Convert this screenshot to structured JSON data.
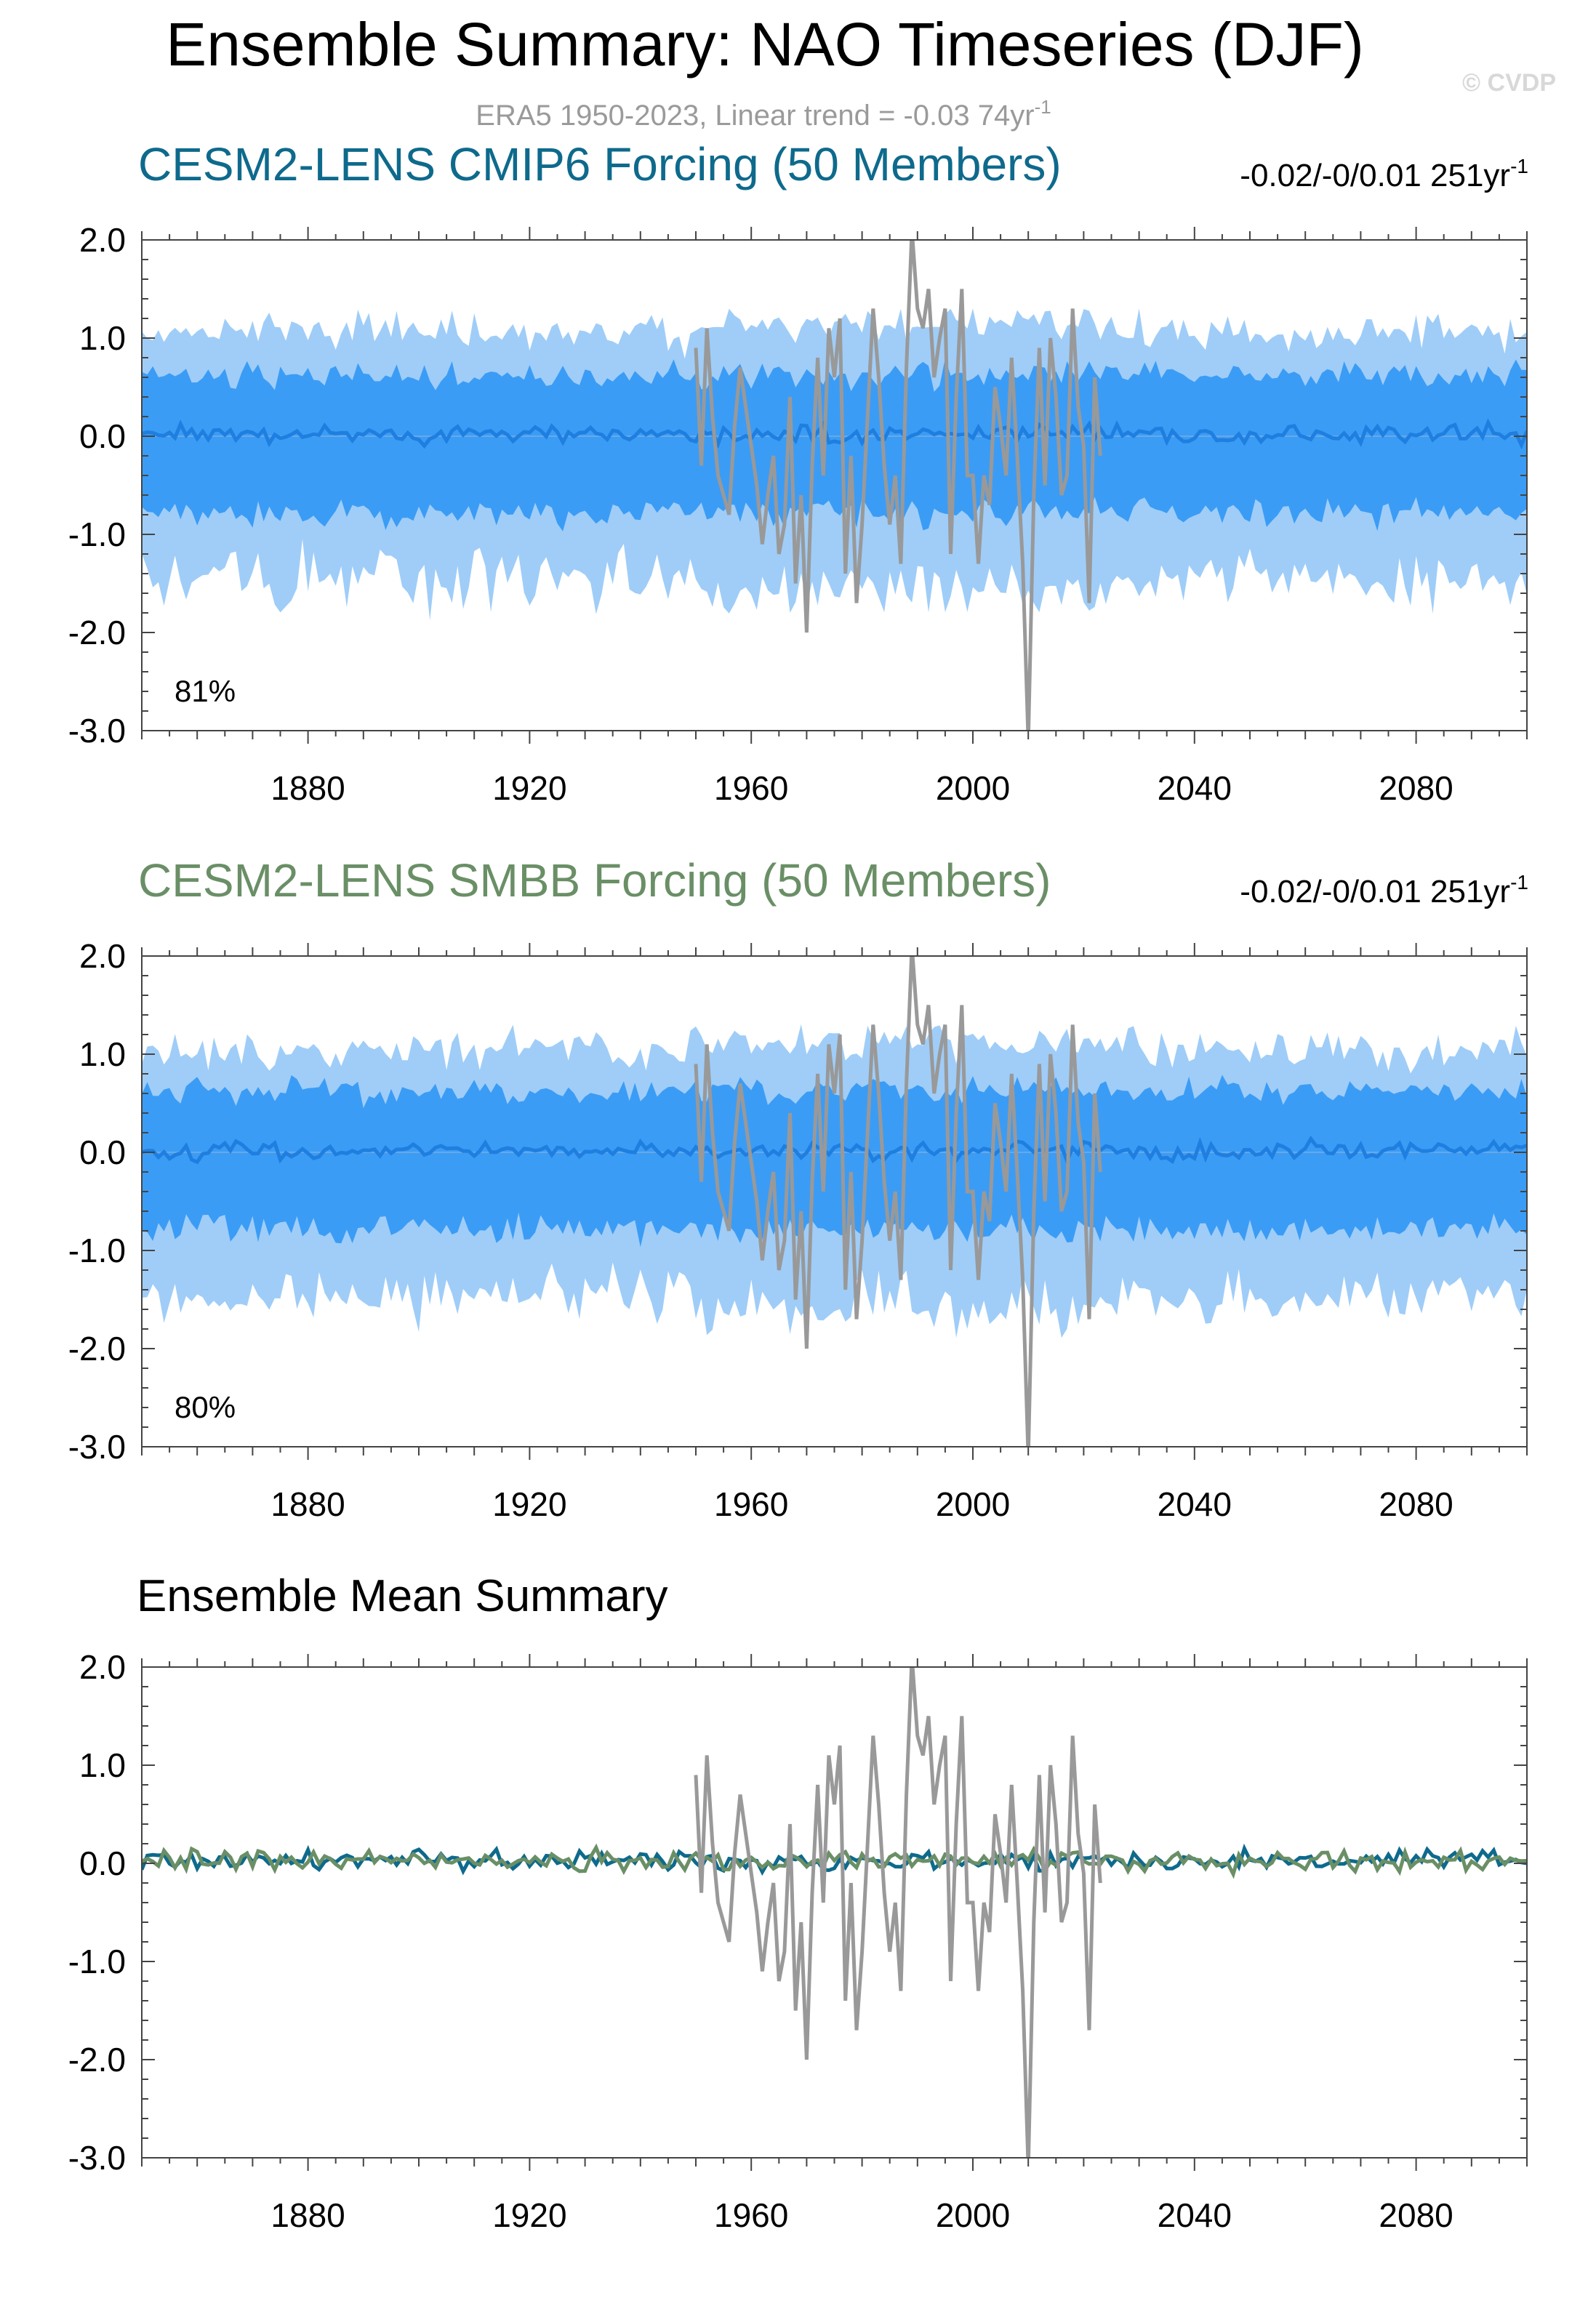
{
  "title": "Ensemble Summary: NAO Timeseries (DJF)",
  "watermark": "© CVDP",
  "subtitle": "ERA5 1950-2023, Linear trend = -0.03 74yr",
  "subtitle_exp": "-1",
  "colors": {
    "obs": "#999999",
    "outer_band": "#9fcdf8",
    "inner_band": "#3b9cf5",
    "ens_mean_line": "#1e7fe0",
    "cmip6": "#0e6a8c",
    "smbb": "#6a8f66",
    "frame": "#444444",
    "title": "#000000",
    "subtitle": "#9a9a9a",
    "watermark": "#d8d8d8"
  },
  "chart_data": [
    {
      "type": "area",
      "title": "CESM2-LENS CMIP6 Forcing (50 Members)",
      "trend_label": "-0.02/-0/0.01 251yr",
      "trend_exp": "-1",
      "annotation": "81%",
      "xlim": [
        1850,
        2100
      ],
      "ylim": [
        -3.0,
        2.0
      ],
      "yticks": [
        "2.0",
        "1.0",
        "0.0",
        "-1.0",
        "-2.0",
        "-3.0"
      ],
      "xticks": [
        "1880",
        "1920",
        "1960",
        "2000",
        "2040",
        "2080"
      ],
      "series": [
        {
          "kind": "band_outer",
          "description": "ensemble spread approx -1.6 to 1.1"
        },
        {
          "kind": "band_inner",
          "description": "ensemble spread approx -0.9 to 0.8"
        },
        {
          "kind": "ensemble_mean",
          "description": "near 0.0"
        },
        {
          "kind": "observations",
          "name": "ERA5"
        }
      ]
    },
    {
      "type": "area",
      "title": "CESM2-LENS SMBB Forcing (50 Members)",
      "trend_label": "-0.02/-0/0.01 251yr",
      "trend_exp": "-1",
      "annotation": "80%",
      "xlim": [
        1850,
        2100
      ],
      "ylim": [
        -3.0,
        2.0
      ],
      "yticks": [
        "2.0",
        "1.0",
        "0.0",
        "-1.0",
        "-2.0",
        "-3.0"
      ],
      "xticks": [
        "1880",
        "1920",
        "1960",
        "2000",
        "2040",
        "2080"
      ],
      "series": [
        {
          "kind": "band_outer"
        },
        {
          "kind": "band_inner"
        },
        {
          "kind": "ensemble_mean"
        },
        {
          "kind": "observations",
          "name": "ERA5"
        }
      ]
    },
    {
      "type": "line",
      "title": "Ensemble Mean Summary",
      "xlim": [
        1850,
        2100
      ],
      "ylim": [
        -3.0,
        2.0
      ],
      "yticks": [
        "2.0",
        "1.0",
        "0.0",
        "-1.0",
        "-2.0",
        "-3.0"
      ],
      "xticks": [
        "1880",
        "1920",
        "1960",
        "2000",
        "2040",
        "2080"
      ],
      "series": [
        {
          "kind": "observations",
          "color_key": "obs"
        },
        {
          "kind": "cmip6_mean",
          "color_key": "cmip6"
        },
        {
          "kind": "smbb_mean",
          "color_key": "smbb"
        }
      ]
    }
  ],
  "obs_series": {
    "years": [
      1950,
      1951,
      1952,
      1953,
      1954,
      1955,
      1956,
      1957,
      1958,
      1959,
      1960,
      1961,
      1962,
      1963,
      1964,
      1965,
      1966,
      1967,
      1968,
      1969,
      1970,
      1971,
      1972,
      1973,
      1974,
      1975,
      1976,
      1977,
      1978,
      1979,
      1980,
      1981,
      1982,
      1983,
      1984,
      1985,
      1986,
      1987,
      1988,
      1989,
      1990,
      1991,
      1992,
      1993,
      1994,
      1995,
      1996,
      1997,
      1998,
      1999,
      2000,
      2001,
      2002,
      2003,
      2004,
      2005,
      2006,
      2007,
      2008,
      2009,
      2010,
      2011,
      2012,
      2013,
      2014,
      2015,
      2016,
      2017,
      2018,
      2019,
      2020,
      2021,
      2022,
      2023
    ],
    "values": [
      0.9,
      -0.3,
      1.1,
      0.2,
      -0.4,
      -0.6,
      -0.8,
      0.1,
      0.7,
      0.3,
      -0.1,
      -0.5,
      -1.1,
      -0.6,
      -0.2,
      -1.2,
      -0.9,
      0.4,
      -1.5,
      -0.6,
      -2.0,
      -0.3,
      0.8,
      -0.4,
      1.1,
      0.6,
      1.2,
      -1.4,
      -0.2,
      -1.7,
      -0.9,
      0.2,
      1.3,
      0.6,
      -0.3,
      -0.9,
      -0.4,
      -1.3,
      0.7,
      2.1,
      1.3,
      1.1,
      1.5,
      0.6,
      1.0,
      1.3,
      -1.2,
      0.4,
      1.5,
      -0.4,
      -0.4,
      -1.3,
      -0.4,
      -0.7,
      0.5,
      0.1,
      -0.4,
      0.8,
      -0.2,
      -1.3,
      -3.1,
      -0.6,
      0.9,
      -0.5,
      1.0,
      0.4,
      -0.6,
      -0.4,
      1.3,
      0.3,
      -0.1,
      -1.7,
      0.6,
      -0.2
    ]
  }
}
